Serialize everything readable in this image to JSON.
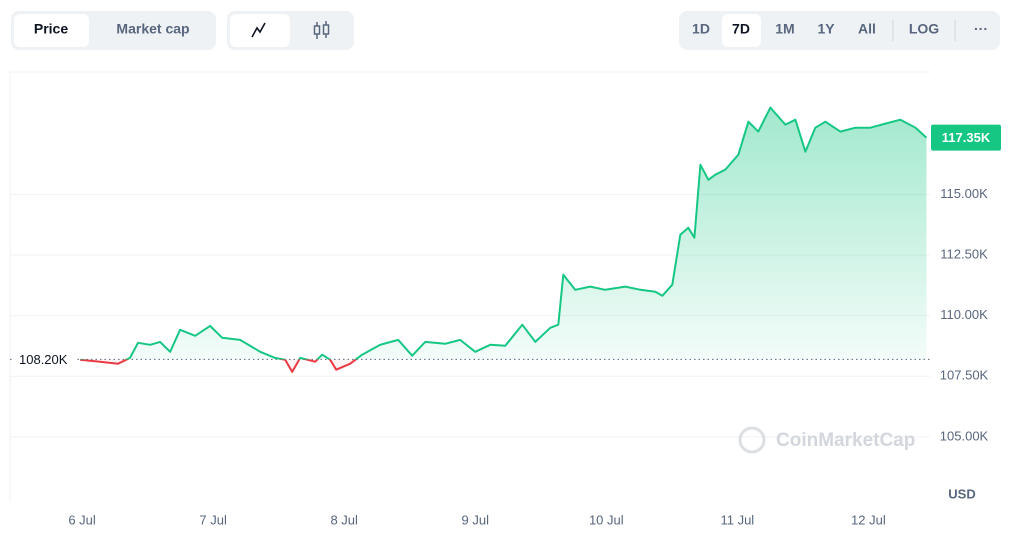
{
  "toolbar": {
    "metric": [
      "Price",
      "Market cap"
    ],
    "ranges": [
      "1D",
      "7D",
      "1M",
      "1Y",
      "All"
    ],
    "scale": "LOG",
    "more": "···"
  },
  "chart_data": {
    "type": "line",
    "x": [
      5.985,
      6.137,
      6.275,
      6.366,
      6.427,
      6.519,
      6.595,
      6.672,
      6.748,
      6.863,
      6.977,
      7.069,
      7.206,
      7.359,
      7.473,
      7.55,
      7.603,
      7.664,
      7.779,
      7.832,
      7.893,
      7.939,
      8.046,
      8.137,
      8.275,
      8.412,
      8.519,
      8.618,
      8.771,
      8.885,
      9.0,
      9.115,
      9.229,
      9.359,
      9.458,
      9.573,
      9.634,
      9.672,
      9.763,
      9.878,
      9.992,
      10.145,
      10.26,
      10.374,
      10.427,
      10.504,
      10.565,
      10.626,
      10.672,
      10.718,
      10.779,
      10.832,
      10.908,
      11.008,
      11.084,
      11.16,
      11.252,
      11.366,
      11.443,
      11.519,
      11.595,
      11.672,
      11.786,
      11.901,
      12.015,
      12.13,
      12.244,
      12.359,
      12.443
    ],
    "values": [
      108180,
      108100,
      108020,
      108260,
      108880,
      108800,
      108920,
      108510,
      109420,
      109170,
      109580,
      109090,
      109000,
      108510,
      108260,
      108180,
      107680,
      108260,
      108100,
      108390,
      108180,
      107770,
      108020,
      108390,
      108800,
      109000,
      108350,
      108920,
      108840,
      109000,
      108510,
      108800,
      108760,
      109630,
      108920,
      109500,
      109630,
      111690,
      111070,
      111200,
      111070,
      111200,
      111070,
      110990,
      110820,
      111280,
      113340,
      113630,
      113220,
      116230,
      115610,
      115820,
      116030,
      116650,
      118010,
      117600,
      118590,
      117890,
      118090,
      116770,
      117760,
      118010,
      117600,
      117760,
      117760,
      117930,
      118090,
      117760,
      117350
    ],
    "up_color": "#16c784",
    "down_color": "#ea3943",
    "reference_price": {
      "value": 108200,
      "label": "108.20K"
    },
    "current_price": {
      "value": 117350,
      "label": "117.35K"
    },
    "xlim": [
      5.45,
      12.47
    ],
    "xticks": [
      {
        "value": 6,
        "label": "6 Jul"
      },
      {
        "value": 7,
        "label": "7 Jul"
      },
      {
        "value": 8,
        "label": "8 Jul"
      },
      {
        "value": 9,
        "label": "9 Jul"
      },
      {
        "value": 10,
        "label": "10 Jul"
      },
      {
        "value": 11,
        "label": "11 Jul"
      },
      {
        "value": 12,
        "label": "12 Jul"
      }
    ],
    "ylim": [
      102310,
      120060
    ],
    "yticks": [
      {
        "value": 105000,
        "label": "105.00K"
      },
      {
        "value": 107500,
        "label": "107.50K"
      },
      {
        "value": 110000,
        "label": "110.00K"
      },
      {
        "value": 112500,
        "label": "112.50K"
      },
      {
        "value": 115000,
        "label": "115.00K"
      }
    ],
    "grid": true,
    "currency": "USD",
    "watermark": "CoinMarketCap"
  }
}
